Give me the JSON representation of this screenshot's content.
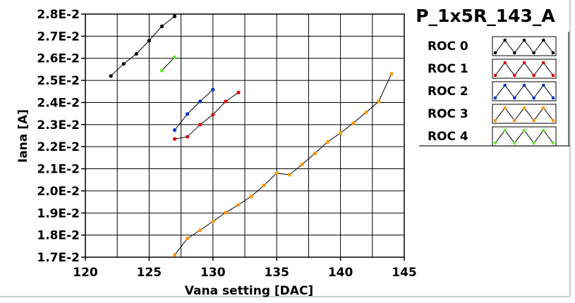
{
  "chart_data": {
    "type": "line",
    "title": "P_1x5R_143_A",
    "xlabel": "Vana setting [DAC]",
    "ylabel": "Iana [A]",
    "xlim": [
      120,
      145
    ],
    "ylim": [
      0.017,
      0.028
    ],
    "x_ticks": [
      120,
      125,
      130,
      135,
      140,
      145
    ],
    "x_tick_labels": [
      "120",
      "125",
      "130",
      "135",
      "140",
      "145"
    ],
    "y_ticks": [
      0.017,
      0.018,
      0.019,
      0.02,
      0.021,
      0.022,
      0.023,
      0.024,
      0.025,
      0.026,
      0.027,
      0.028
    ],
    "y_tick_labels": [
      "1.7E-2",
      "1.8E-2",
      "1.9E-2",
      "2.0E-2",
      "2.1E-2",
      "2.2E-2",
      "2.3E-2",
      "2.4E-2",
      "2.5E-2",
      "2.6E-2",
      "2.7E-2",
      "2.8E-2"
    ],
    "grid": true,
    "legend_position": "top-right",
    "series": [
      {
        "name": "ROC 0",
        "color": "#000000",
        "x": [
          122,
          123,
          124,
          125,
          126,
          127
        ],
        "y": [
          0.0252,
          0.02575,
          0.0262,
          0.0268,
          0.02745,
          0.0279
        ]
      },
      {
        "name": "ROC 1",
        "color": "#dd0000",
        "x": [
          127,
          128,
          129,
          130,
          131,
          132
        ],
        "y": [
          0.02235,
          0.02245,
          0.023,
          0.02345,
          0.02405,
          0.02445
        ]
      },
      {
        "name": "ROC 2",
        "color": "#0033cc",
        "x": [
          127,
          128,
          129,
          130
        ],
        "y": [
          0.02275,
          0.02348,
          0.02405,
          0.02458
        ]
      },
      {
        "name": "ROC 3",
        "color": "#ff9900",
        "x": [
          127,
          128,
          129,
          130,
          131,
          132,
          133,
          134,
          135,
          136,
          137,
          138,
          139,
          140,
          141,
          142,
          143,
          144
        ],
        "y": [
          0.0171,
          0.01785,
          0.01822,
          0.01862,
          0.01902,
          0.01937,
          0.01975,
          0.02025,
          0.0208,
          0.02073,
          0.0212,
          0.0217,
          0.02222,
          0.02262,
          0.02307,
          0.02355,
          0.02405,
          0.0253
        ]
      },
      {
        "name": "ROC 4",
        "color": "#66ee22",
        "x": [
          126,
          127
        ],
        "y": [
          0.02545,
          0.02605
        ]
      }
    ]
  }
}
